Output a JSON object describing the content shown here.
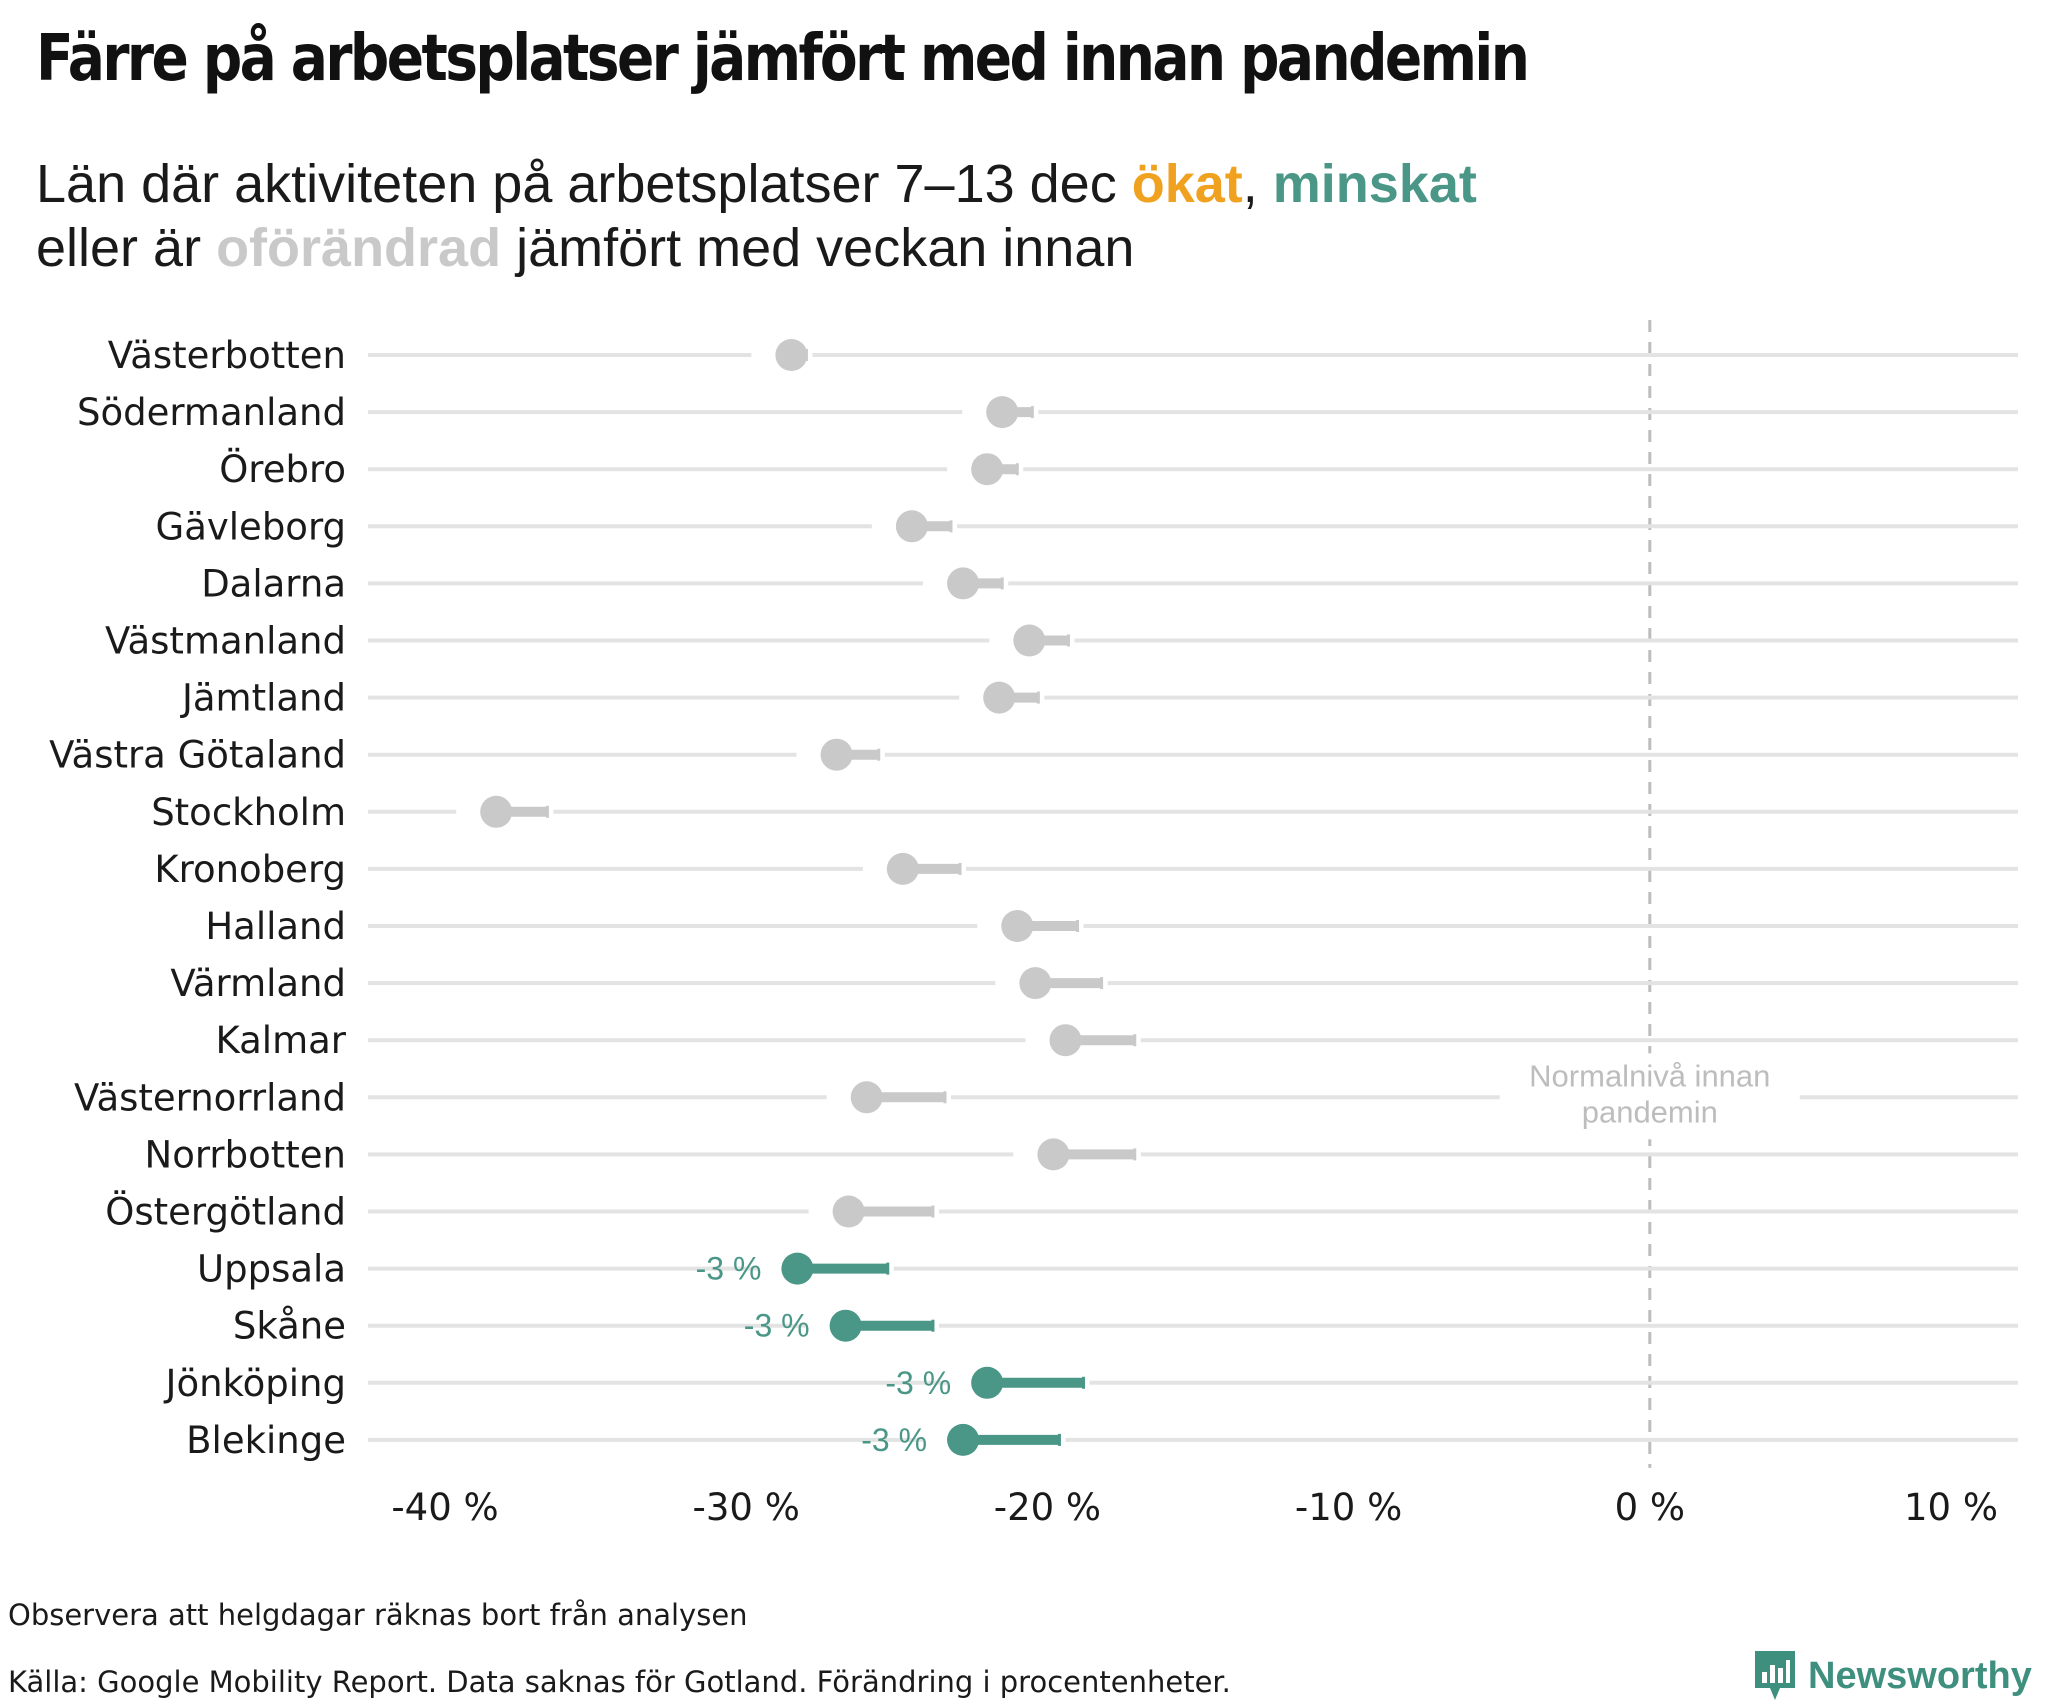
{
  "header": {
    "title": "Färre på arbetsplatser jämfört med innan pandemin",
    "subtitle_part1": "Län där aktiviteten på arbetsplatser 7–13 dec ",
    "subtitle_up": "ökat",
    "subtitle_comma": ", ",
    "subtitle_down": "minskat",
    "subtitle_part2": "eller är ",
    "subtitle_same": "oförändrad",
    "subtitle_part3": " jämfört med veckan innan"
  },
  "colors": {
    "up": "#f0a11f",
    "down": "#4a9787",
    "same": "#c9c9c9",
    "baseline": "#e3e3e3",
    "refline": "#bdbdbd"
  },
  "chart_data": {
    "type": "dot-arrow",
    "x_axis": {
      "min": -42,
      "max": 12.5,
      "ticks": [
        -40,
        -30,
        -20,
        -10,
        0,
        10
      ],
      "tick_labels": [
        "-40 %",
        "-30 %",
        "-20 %",
        "-10 %",
        "0 %",
        "10 %"
      ]
    },
    "reference_line": {
      "x": 0,
      "label_line1": "Normalnivå innan",
      "label_line2": "pandemin"
    },
    "rows": [
      {
        "region": "Västerbotten",
        "current": -28.5,
        "previous": -28,
        "status": "same"
      },
      {
        "region": "Södermanland",
        "current": -21.5,
        "previous": -20.5,
        "status": "same"
      },
      {
        "region": "Örebro",
        "current": -22,
        "previous": -21,
        "status": "same"
      },
      {
        "region": "Gävleborg",
        "current": -24.5,
        "previous": -23.2,
        "status": "same"
      },
      {
        "region": "Dalarna",
        "current": -22.8,
        "previous": -21.5,
        "status": "same"
      },
      {
        "region": "Västmanland",
        "current": -20.6,
        "previous": -19.3,
        "status": "same"
      },
      {
        "region": "Jämtland",
        "current": -21.6,
        "previous": -20.3,
        "status": "same"
      },
      {
        "region": "Västra Götaland",
        "current": -27,
        "previous": -25.6,
        "status": "same"
      },
      {
        "region": "Stockholm",
        "current": -38.3,
        "previous": -36.6,
        "status": "same"
      },
      {
        "region": "Kronoberg",
        "current": -24.8,
        "previous": -22.9,
        "status": "same"
      },
      {
        "region": "Halland",
        "current": -21,
        "previous": -19,
        "status": "same"
      },
      {
        "region": "Värmland",
        "current": -20.4,
        "previous": -18.2,
        "status": "same"
      },
      {
        "region": "Kalmar",
        "current": -19.4,
        "previous": -17.1,
        "status": "same"
      },
      {
        "region": "Västernorrland",
        "current": -26,
        "previous": -23.4,
        "status": "same"
      },
      {
        "region": "Norrbotten",
        "current": -19.8,
        "previous": -17.1,
        "status": "same"
      },
      {
        "region": "Östergötland",
        "current": -26.6,
        "previous": -23.8,
        "status": "same"
      },
      {
        "region": "Uppsala",
        "current": -28.3,
        "previous": -25.3,
        "status": "down",
        "label": "-3 %"
      },
      {
        "region": "Skåne",
        "current": -26.7,
        "previous": -23.8,
        "status": "down",
        "label": "-3 %"
      },
      {
        "region": "Jönköping",
        "current": -22,
        "previous": -18.8,
        "status": "down",
        "label": "-3 %"
      },
      {
        "region": "Blekinge",
        "current": -22.8,
        "previous": -19.6,
        "status": "down",
        "label": "-3 %"
      }
    ]
  },
  "footer": {
    "note": "Observera att helgdagar räknas bort från analysen",
    "source": "Källa: Google Mobility Report. Data saknas för Gotland. Förändring i procentenheter.",
    "brand": "Newsworthy"
  }
}
